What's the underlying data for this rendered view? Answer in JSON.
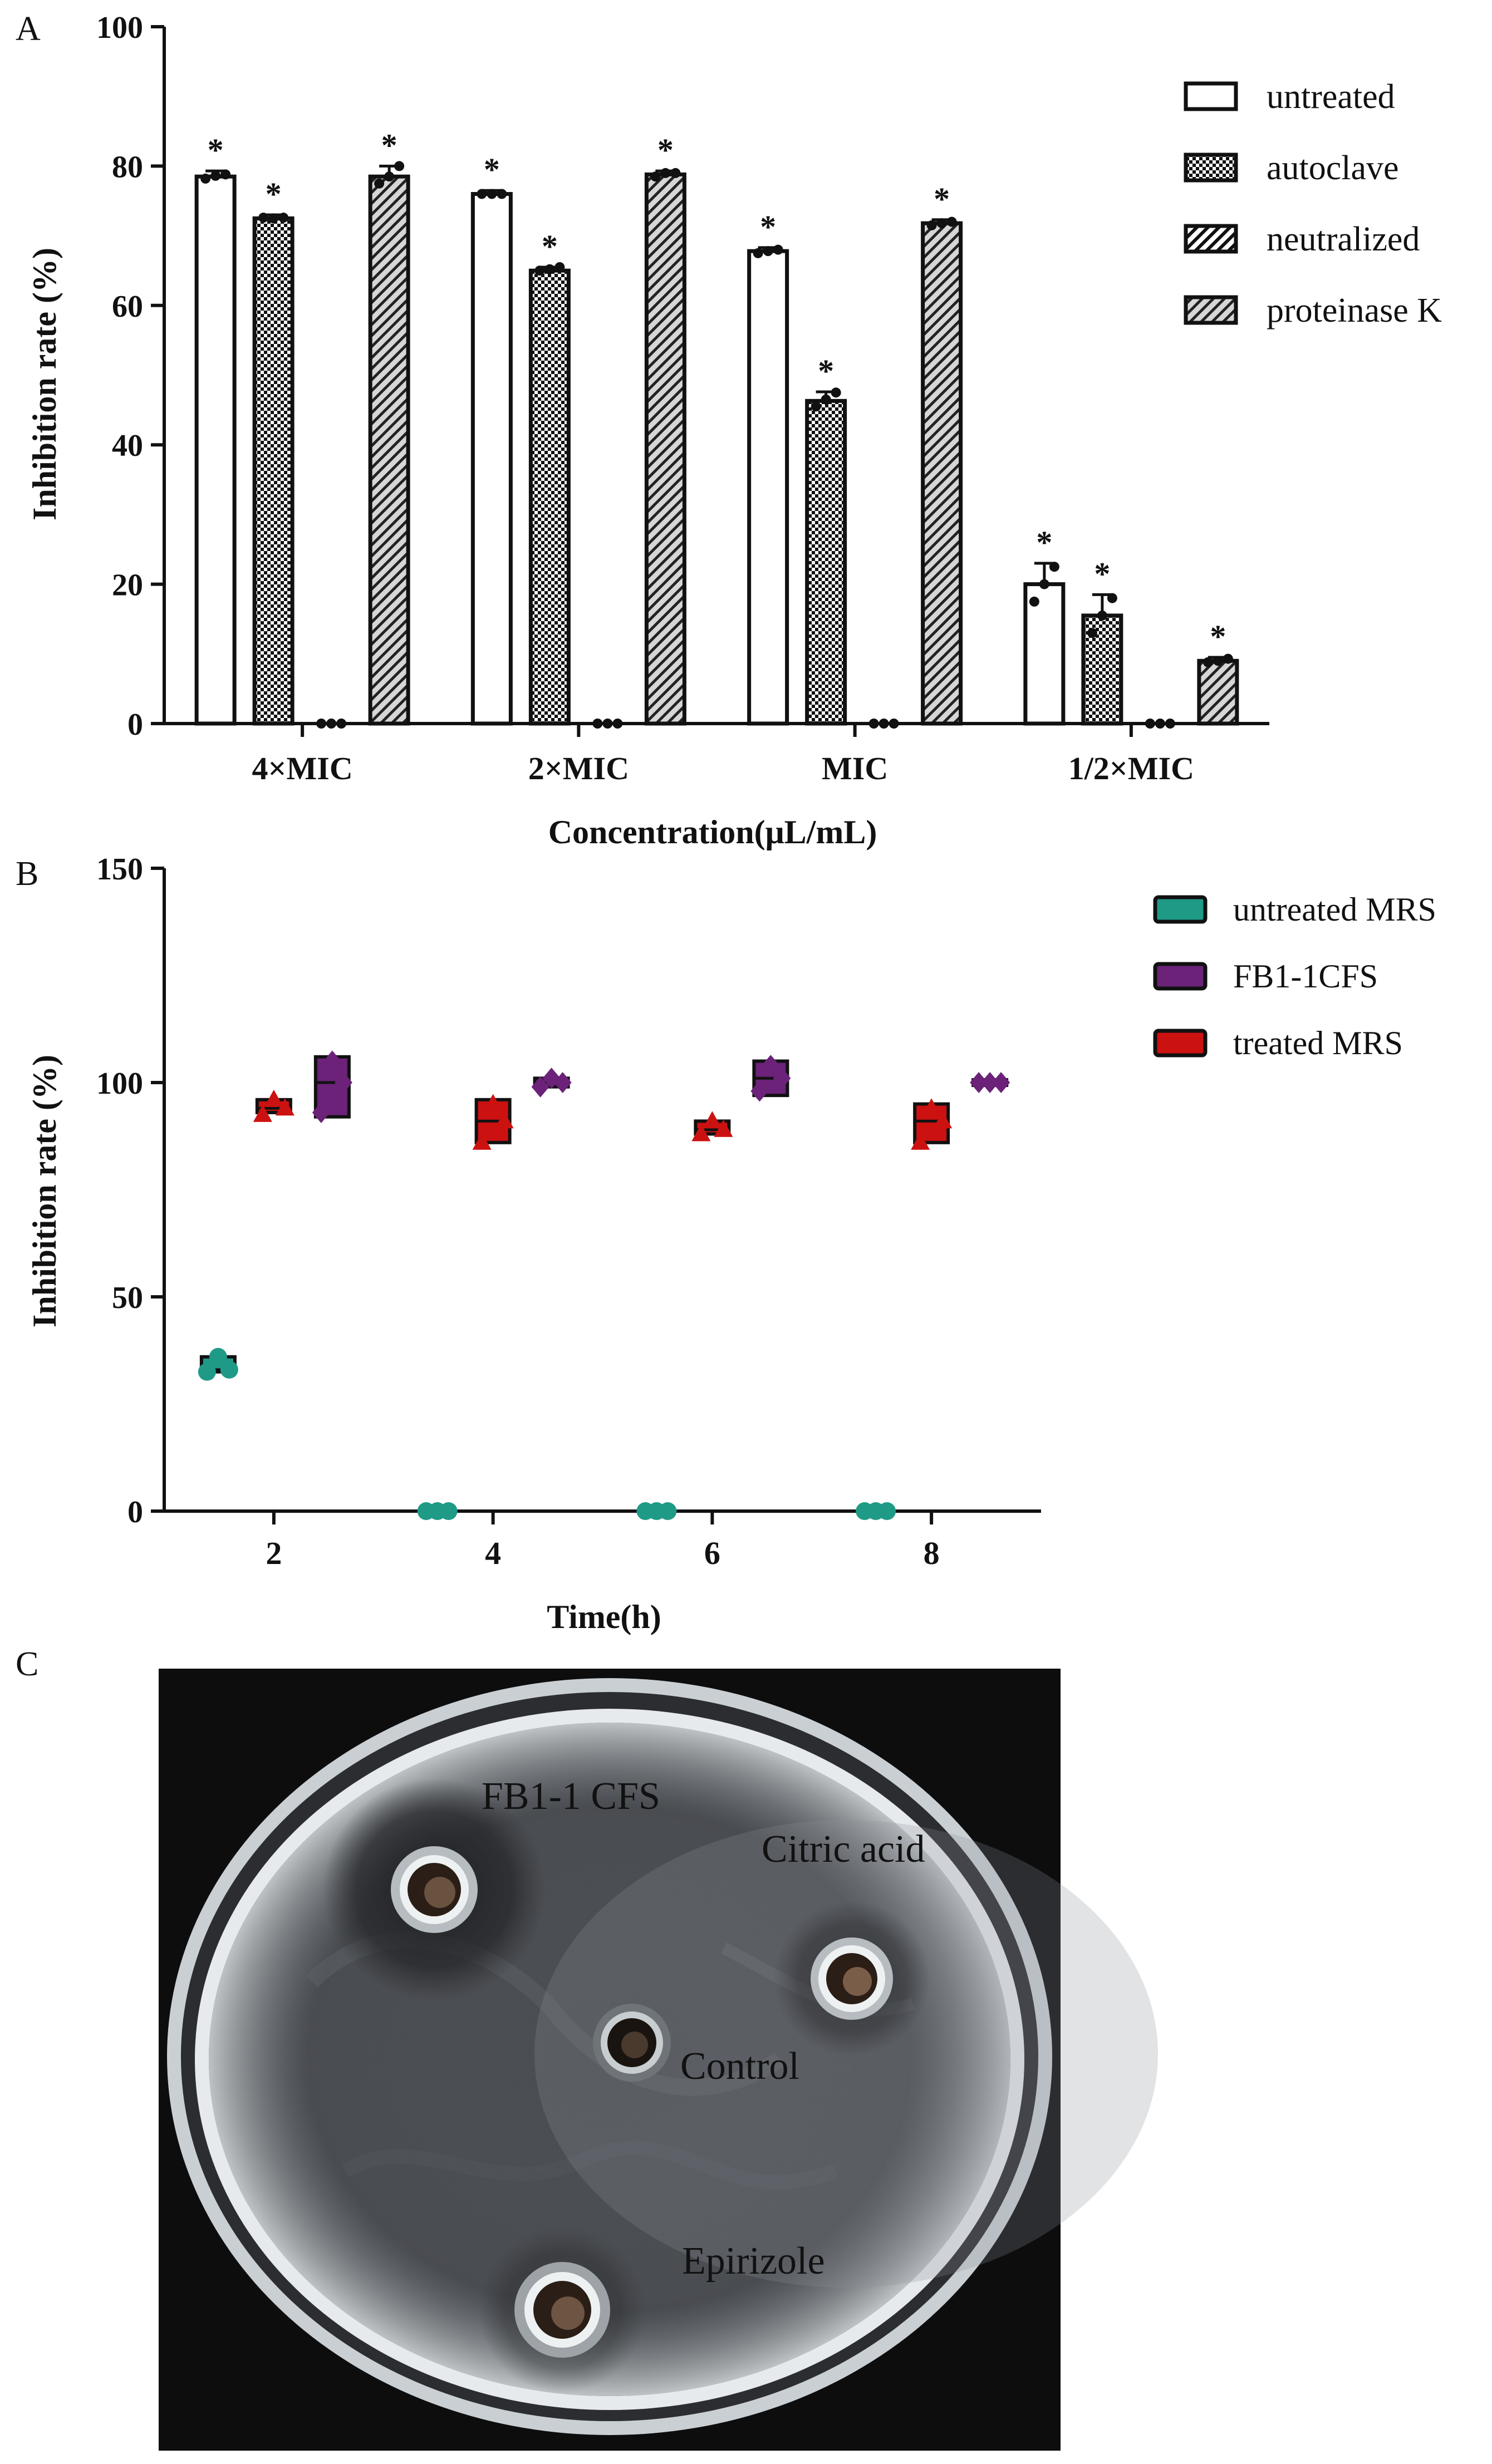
{
  "panel_labels": {
    "a": "A",
    "b": "B",
    "c": "C"
  },
  "chart_data": [
    {
      "type": "bar",
      "title": "",
      "xlabel": "Concentration(μL/mL)",
      "ylabel": "Inhibition rate (%)",
      "ylim": [
        0,
        100
      ],
      "yticks": [
        "0",
        "20",
        "40",
        "60",
        "80",
        "100"
      ],
      "categories": [
        "4×MIC",
        "2×MIC",
        "MIC",
        "1/2×MIC"
      ],
      "series": [
        {
          "name": "untreated",
          "pattern": "open",
          "values": [
            78.5,
            76,
            67.8,
            20
          ],
          "errors": [
            0.8,
            0.5,
            0.5,
            3
          ],
          "points": [
            [
              78.2,
              78.6,
              78.8
            ],
            [
              76,
              76,
              76
            ],
            [
              67.5,
              67.8,
              68
            ],
            [
              17.5,
              20,
              22.5
            ]
          ]
        },
        {
          "name": "autoclave",
          "pattern": "checker",
          "values": [
            72.5,
            65,
            46.3,
            15.5
          ],
          "errors": [
            0.5,
            0.5,
            1.3,
            3
          ],
          "points": [
            [
              72.6,
              72.5,
              72.6
            ],
            [
              65,
              65.2,
              65.5
            ],
            [
              45.5,
              46.5,
              47.5
            ],
            [
              13,
              15.5,
              18
            ]
          ]
        },
        {
          "name": "neutralized",
          "pattern": "hatch",
          "values": [
            0,
            0,
            0,
            0
          ],
          "errors": [
            0,
            0,
            0,
            0
          ],
          "points": [
            [
              0,
              0,
              0
            ],
            [
              0,
              0,
              0
            ],
            [
              0,
              0,
              0
            ],
            [
              0,
              0,
              0
            ]
          ]
        },
        {
          "name": "proteinase K",
          "pattern": "hatch-gray",
          "values": [
            78.5,
            78.8,
            71.8,
            9
          ],
          "errors": [
            1.5,
            0.5,
            0.5,
            0.5
          ],
          "points": [
            [
              77.5,
              78.5,
              80
            ],
            [
              78.5,
              79,
              79
            ],
            [
              71.5,
              71.8,
              72
            ],
            [
              8.8,
              9,
              9.3
            ]
          ]
        }
      ],
      "annotations": {
        "significance": "*"
      },
      "legend_position": "top-right"
    },
    {
      "type": "scatter",
      "title": "",
      "xlabel": "Time(h)",
      "ylabel": "Inhibition rate (%)",
      "ylim": [
        0,
        150
      ],
      "yticks": [
        "0",
        "50",
        "100",
        "150"
      ],
      "categories": [
        "2",
        "4",
        "6",
        "8"
      ],
      "series": [
        {
          "name": "untreated MRS",
          "color": "#1f9a87",
          "marker": "circle",
          "points": [
            [
              32.5,
              36,
              33
            ],
            [
              0,
              0,
              0
            ],
            [
              0,
              0,
              0
            ],
            [
              0,
              0,
              0
            ]
          ],
          "box": [
            [
              32.5,
              36
            ],
            [
              0,
              0
            ],
            [
              0,
              0
            ],
            [
              0,
              0
            ]
          ]
        },
        {
          "name": "treated MRS",
          "color": "#cc1111",
          "marker": "triangle",
          "points": [
            [
              92.5,
              96,
              94
            ],
            [
              86,
              95,
              91
            ],
            [
              88,
              91,
              89
            ],
            [
              86,
              94,
              91
            ]
          ],
          "box": [
            [
              93,
              96
            ],
            [
              86,
              96
            ],
            [
              88,
              91
            ],
            [
              86,
              95
            ]
          ]
        },
        {
          "name": "FB1-1CFS",
          "color": "#6b2278",
          "marker": "diamond",
          "points": [
            [
              93,
              105,
              100
            ],
            [
              99,
              101,
              100
            ],
            [
              98,
              104,
              101
            ],
            [
              100,
              100,
              100
            ]
          ],
          "box": [
            [
              92,
              106
            ],
            [
              99,
              101
            ],
            [
              97,
              105
            ],
            [
              100,
              100
            ]
          ]
        }
      ],
      "legend_order": [
        "untreated MRS",
        "FB1-1CFS",
        "treated MRS"
      ],
      "legend_position": "top-right"
    }
  ],
  "photo": {
    "description": "agar plate well diffusion assay",
    "labels": {
      "cfs": "FB1-1 CFS",
      "citric": "Citric acid",
      "control": "Control",
      "epirizole": "Epirizole"
    }
  }
}
